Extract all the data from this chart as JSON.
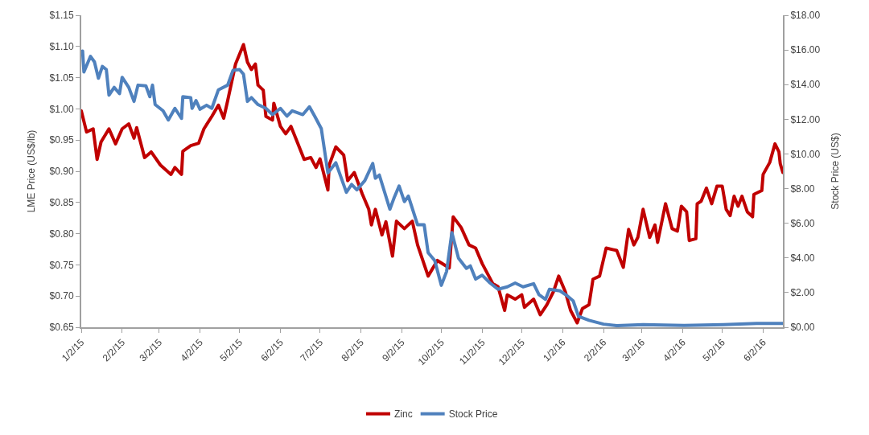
{
  "chart_data": {
    "type": "line",
    "ylabel": "LME Price (US$/lb)",
    "y2label": "Stock Price (US$)",
    "xlim": [
      "2015-01-02",
      "2016-06-17"
    ],
    "xticks": [
      {
        "value": "2015-01-02",
        "label": "1/2/15"
      },
      {
        "value": "2015-02-02",
        "label": "2/2/15"
      },
      {
        "value": "2015-03-02",
        "label": "3/2/15"
      },
      {
        "value": "2015-04-02",
        "label": "4/2/15"
      },
      {
        "value": "2015-05-02",
        "label": "5/2/15"
      },
      {
        "value": "2015-06-02",
        "label": "6/2/15"
      },
      {
        "value": "2015-07-02",
        "label": "7/2/15"
      },
      {
        "value": "2015-08-02",
        "label": "8/2/15"
      },
      {
        "value": "2015-09-02",
        "label": "9/2/15"
      },
      {
        "value": "2015-10-02",
        "label": "10/2/15"
      },
      {
        "value": "2015-11-02",
        "label": "11/2/15"
      },
      {
        "value": "2015-12-02",
        "label": "12/2/15"
      },
      {
        "value": "2016-01-02",
        "label": "1/2/16"
      },
      {
        "value": "2016-02-02",
        "label": "2/2/16"
      },
      {
        "value": "2016-03-02",
        "label": "3/2/16"
      },
      {
        "value": "2016-04-02",
        "label": "4/2/16"
      },
      {
        "value": "2016-05-02",
        "label": "5/2/16"
      },
      {
        "value": "2016-06-02",
        "label": "6/2/16"
      }
    ],
    "ylim": [
      0.65,
      1.15
    ],
    "yticks": [
      {
        "value": 0.65,
        "label": "$0.65"
      },
      {
        "value": 0.7,
        "label": "$0.70"
      },
      {
        "value": 0.75,
        "label": "$0.75"
      },
      {
        "value": 0.8,
        "label": "$0.80"
      },
      {
        "value": 0.85,
        "label": "$0.85"
      },
      {
        "value": 0.9,
        "label": "$0.90"
      },
      {
        "value": 0.95,
        "label": "$0.95"
      },
      {
        "value": 1.0,
        "label": "$1.00"
      },
      {
        "value": 1.05,
        "label": "$1.05"
      },
      {
        "value": 1.1,
        "label": "$1.10"
      },
      {
        "value": 1.15,
        "label": "$1.15"
      }
    ],
    "y2lim": [
      0,
      18
    ],
    "y2ticks": [
      {
        "value": 0,
        "label": "$0.00"
      },
      {
        "value": 2,
        "label": "$2.00"
      },
      {
        "value": 4,
        "label": "$4.00"
      },
      {
        "value": 6,
        "label": "$6.00"
      },
      {
        "value": 8,
        "label": "$8.00"
      },
      {
        "value": 10,
        "label": "$10.00"
      },
      {
        "value": 12,
        "label": "$12.00"
      },
      {
        "value": 14,
        "label": "$14.00"
      },
      {
        "value": 16,
        "label": "$16.00"
      },
      {
        "value": 18,
        "label": "$18.00"
      }
    ],
    "legend": "bottom",
    "marker": "none",
    "line_style": "solid",
    "series": [
      {
        "name": "Zinc",
        "color": "#c00000",
        "x": [
          "2015-01-02",
          "2015-01-06",
          "2015-01-11",
          "2015-01-14",
          "2015-01-17",
          "2015-01-23",
          "2015-01-28",
          "2015-02-02",
          "2015-02-07",
          "2015-02-11",
          "2015-02-13",
          "2015-02-19",
          "2015-02-24",
          "2015-03-03",
          "2015-03-11",
          "2015-03-14",
          "2015-03-19",
          "2015-03-20",
          "2015-03-26",
          "2015-04-01",
          "2015-04-05",
          "2015-04-11",
          "2015-04-16",
          "2015-04-20",
          "2015-04-23",
          "2015-04-29",
          "2015-05-05",
          "2015-05-08",
          "2015-05-11",
          "2015-05-14",
          "2015-05-16",
          "2015-05-20",
          "2015-05-22",
          "2015-05-27",
          "2015-05-28",
          "2015-06-02",
          "2015-06-06",
          "2015-06-10",
          "2015-06-14",
          "2015-06-20",
          "2015-06-25",
          "2015-06-29",
          "2015-07-02",
          "2015-07-08",
          "2015-07-09",
          "2015-07-14",
          "2015-07-20",
          "2015-07-23",
          "2015-07-28",
          "2015-08-03",
          "2015-08-08",
          "2015-08-10",
          "2015-08-13",
          "2015-08-18",
          "2015-08-21",
          "2015-08-26",
          "2015-08-29",
          "2015-09-04",
          "2015-09-10",
          "2015-09-14",
          "2015-09-22",
          "2015-09-29",
          "2015-10-08",
          "2015-10-11",
          "2015-10-17",
          "2015-10-23",
          "2015-10-28",
          "2015-11-02",
          "2015-11-10",
          "2015-11-14",
          "2015-11-19",
          "2015-11-21",
          "2015-11-27",
          "2015-12-02",
          "2015-12-04",
          "2015-12-11",
          "2015-12-16",
          "2015-12-21",
          "2015-12-26",
          "2015-12-30",
          "2016-01-04",
          "2016-01-08",
          "2016-01-13",
          "2016-01-17",
          "2016-01-22",
          "2016-01-25",
          "2016-01-30",
          "2016-02-04",
          "2016-02-12",
          "2016-02-17",
          "2016-02-21",
          "2016-02-25",
          "2016-02-28",
          "2016-03-03",
          "2016-03-08",
          "2016-03-12",
          "2016-03-14",
          "2016-03-20",
          "2016-03-25",
          "2016-03-29",
          "2016-04-01",
          "2016-04-05",
          "2016-04-07",
          "2016-04-12",
          "2016-04-13",
          "2016-04-16",
          "2016-04-20",
          "2016-04-24",
          "2016-04-28",
          "2016-05-02",
          "2016-05-05",
          "2016-05-08",
          "2016-05-11",
          "2016-05-14",
          "2016-05-17",
          "2016-05-21",
          "2016-05-25",
          "2016-05-26",
          "2016-06-01",
          "2016-06-02",
          "2016-06-07",
          "2016-06-11",
          "2016-06-14",
          "2016-06-15",
          "2016-06-17"
        ],
        "values": [
          0.997,
          0.963,
          0.968,
          0.919,
          0.947,
          0.968,
          0.944,
          0.968,
          0.976,
          0.953,
          0.97,
          0.922,
          0.931,
          0.91,
          0.895,
          0.906,
          0.895,
          0.932,
          0.941,
          0.945,
          0.968,
          0.988,
          1.006,
          0.985,
          1.013,
          1.072,
          1.103,
          1.075,
          1.063,
          1.072,
          1.038,
          1.03,
          0.988,
          0.982,
          1.009,
          0.972,
          0.96,
          0.972,
          0.951,
          0.919,
          0.922,
          0.906,
          0.92,
          0.87,
          0.91,
          0.939,
          0.926,
          0.885,
          0.898,
          0.864,
          0.839,
          0.814,
          0.839,
          0.798,
          0.819,
          0.764,
          0.82,
          0.808,
          0.82,
          0.782,
          0.732,
          0.757,
          0.745,
          0.827,
          0.81,
          0.782,
          0.777,
          0.752,
          0.72,
          0.715,
          0.677,
          0.702,
          0.695,
          0.702,
          0.682,
          0.695,
          0.67,
          0.686,
          0.707,
          0.732,
          0.707,
          0.677,
          0.657,
          0.68,
          0.686,
          0.727,
          0.732,
          0.777,
          0.773,
          0.746,
          0.807,
          0.782,
          0.794,
          0.839,
          0.794,
          0.814,
          0.786,
          0.848,
          0.808,
          0.804,
          0.844,
          0.835,
          0.789,
          0.792,
          0.848,
          0.852,
          0.873,
          0.848,
          0.876,
          0.876,
          0.839,
          0.829,
          0.86,
          0.844,
          0.86,
          0.835,
          0.827,
          0.863,
          0.869,
          0.895,
          0.914,
          0.944,
          0.931,
          0.912,
          0.898
        ]
      },
      {
        "name": "Stock Price",
        "color": "#4f81bd",
        "axis": "y2",
        "x": [
          "2015-01-03",
          "2015-01-04",
          "2015-01-09",
          "2015-01-12",
          "2015-01-15",
          "2015-01-18",
          "2015-01-21",
          "2015-01-23",
          "2015-01-27",
          "2015-01-31",
          "2015-02-02",
          "2015-02-07",
          "2015-02-11",
          "2015-02-14",
          "2015-02-20",
          "2015-02-23",
          "2015-02-25",
          "2015-02-27",
          "2015-03-05",
          "2015-03-09",
          "2015-03-14",
          "2015-03-19",
          "2015-03-20",
          "2015-03-26",
          "2015-03-27",
          "2015-03-30",
          "2015-04-02",
          "2015-04-07",
          "2015-04-11",
          "2015-04-16",
          "2015-04-23",
          "2015-04-27",
          "2015-05-02",
          "2015-05-05",
          "2015-05-08",
          "2015-05-11",
          "2015-05-16",
          "2015-05-22",
          "2015-05-27",
          "2015-06-02",
          "2015-06-07",
          "2015-06-11",
          "2015-06-19",
          "2015-06-24",
          "2015-06-28",
          "2015-07-03",
          "2015-07-08",
          "2015-07-14",
          "2015-07-22",
          "2015-07-26",
          "2015-07-30",
          "2015-08-05",
          "2015-08-11",
          "2015-08-13",
          "2015-08-16",
          "2015-08-24",
          "2015-08-27",
          "2015-08-31",
          "2015-09-04",
          "2015-09-07",
          "2015-09-14",
          "2015-09-19",
          "2015-09-22",
          "2015-09-27",
          "2015-10-02",
          "2015-10-06",
          "2015-10-10",
          "2015-10-15",
          "2015-10-21",
          "2015-10-24",
          "2015-10-28",
          "2015-11-02",
          "2015-11-08",
          "2015-11-14",
          "2015-11-21",
          "2015-11-27",
          "2015-12-03",
          "2015-12-11",
          "2015-12-15",
          "2015-12-20",
          "2015-12-23",
          "2015-12-31",
          "2016-01-05",
          "2016-01-10",
          "2016-01-14",
          "2016-01-22",
          "2016-02-02",
          "2016-02-12",
          "2016-03-03",
          "2016-04-03",
          "2016-05-03",
          "2016-05-28",
          "2016-06-17"
        ],
        "values": [
          15.94,
          14.73,
          15.63,
          15.31,
          14.37,
          15.05,
          14.87,
          13.39,
          13.84,
          13.48,
          14.42,
          13.84,
          13.03,
          13.97,
          13.93,
          13.3,
          13.97,
          12.85,
          12.49,
          11.96,
          12.63,
          12.05,
          13.3,
          13.25,
          12.63,
          13.08,
          12.58,
          12.81,
          12.63,
          13.7,
          13.97,
          14.82,
          14.87,
          14.6,
          13.03,
          13.25,
          12.85,
          12.63,
          12.27,
          12.63,
          12.18,
          12.49,
          12.27,
          12.72,
          12.18,
          11.46,
          8.91,
          9.49,
          7.79,
          8.24,
          7.93,
          8.46,
          9.45,
          8.6,
          8.78,
          6.81,
          7.43,
          8.15,
          7.25,
          7.57,
          5.91,
          5.91,
          4.3,
          3.85,
          2.42,
          3.22,
          5.46,
          3.99,
          3.4,
          3.54,
          2.78,
          3.0,
          2.55,
          2.19,
          2.33,
          2.55,
          2.33,
          2.51,
          1.88,
          1.61,
          2.19,
          2.1,
          1.84,
          1.52,
          0.63,
          0.4,
          0.18,
          0.09,
          0.15,
          0.1,
          0.15,
          0.22,
          0.22
        ]
      }
    ]
  }
}
